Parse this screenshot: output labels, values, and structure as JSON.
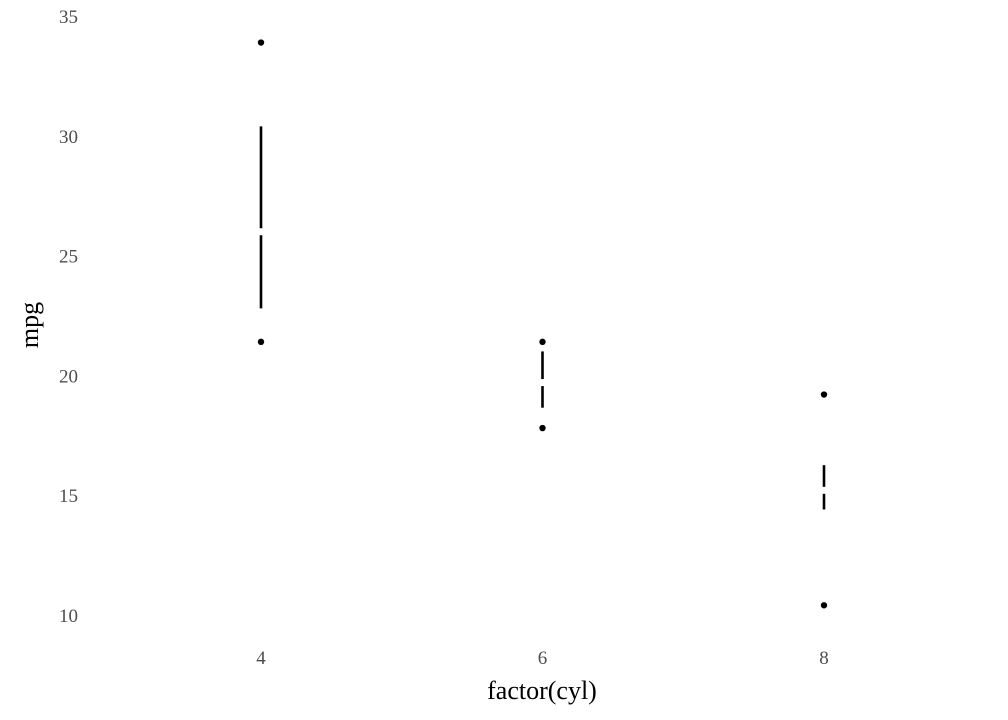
{
  "chart_data": {
    "type": "tufte-boxplot",
    "title": "",
    "xlabel": "factor(cyl)",
    "ylabel": "mpg",
    "ylim": [
      9.2,
      35.3
    ],
    "yticks": [
      10,
      15,
      20,
      25,
      30,
      35
    ],
    "ytick_labels": [
      "10",
      "15",
      "20",
      "25",
      "30",
      "35"
    ],
    "grid": false,
    "legend": "none",
    "categories": [
      "4",
      "6",
      "8"
    ],
    "groups": [
      {
        "category": "4",
        "min": 21.4,
        "q1": 22.8,
        "median": 26.0,
        "q3": 30.4,
        "max": 33.9
      },
      {
        "category": "6",
        "min": 17.8,
        "q1": 18.65,
        "median": 19.7,
        "q3": 21.0,
        "max": 21.4
      },
      {
        "category": "8",
        "min": 10.4,
        "q1": 14.4,
        "median": 15.2,
        "q3": 16.25,
        "max": 19.2
      }
    ]
  },
  "colors": {
    "mark": "#000000",
    "tick_text": "#4d4d4d",
    "axis_title": "#000000",
    "background": "#ffffff"
  }
}
